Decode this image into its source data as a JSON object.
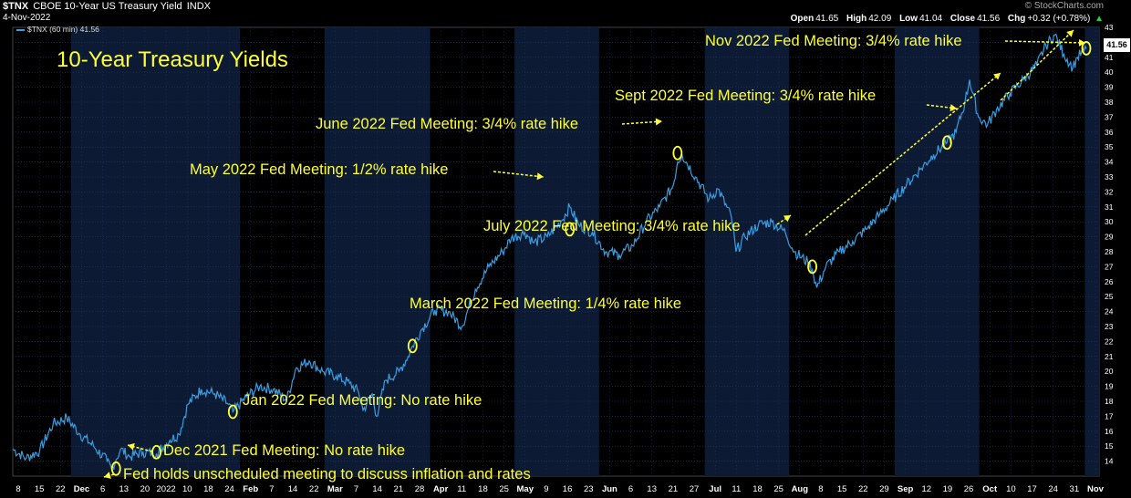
{
  "header": {
    "symbol": "$TNX",
    "description": "CBOE 10-Year US Treasury Yield",
    "exchange": "INDX",
    "date": "4-Nov-2022",
    "brand": "© StockCharts.com",
    "open_label": "Open",
    "open": "41.65",
    "high_label": "High",
    "high": "42.09",
    "low_label": "Low",
    "low": "41.04",
    "close_label": "Close",
    "close": "41.56",
    "chg_label": "Chg",
    "chg": "+0.32 (+0.78%)",
    "chg_arrow": "▲"
  },
  "legend": {
    "series_label": "$TNX (60 min) 41.56"
  },
  "colors": {
    "line": "#3a9ee0",
    "annotation": "#ffff33",
    "band": "#0c1a33",
    "grid": "#233a5e"
  },
  "chart_data": {
    "type": "line",
    "title": "10-Year Treasury Yields",
    "xlabel": "",
    "ylabel": "",
    "ylim": [
      13,
      43
    ],
    "yticks": [
      14,
      15,
      16,
      17,
      18,
      19,
      20,
      21,
      22,
      23,
      24,
      25,
      26,
      27,
      28,
      29,
      30,
      31,
      32,
      33,
      34,
      35,
      36,
      37,
      38,
      39,
      40,
      41,
      42,
      43
    ],
    "last_value": "41.56",
    "xticks": [
      "8",
      "15",
      "22",
      "Dec",
      "6",
      "13",
      "20",
      "2022",
      "10",
      "18",
      "24",
      "Feb",
      "7",
      "14",
      "22",
      "Mar",
      "7",
      "14",
      "21",
      "28",
      "Apr",
      "11",
      "18",
      "25",
      "May",
      "9",
      "16",
      "23",
      "Jun",
      "6",
      "13",
      "21",
      "27",
      "Jul",
      "11",
      "18",
      "25",
      "Aug",
      "8",
      "15",
      "22",
      "29",
      "Sep",
      "12",
      "19",
      "26",
      "Oct",
      "10",
      "17",
      "24",
      "31",
      "Nov"
    ],
    "series": [
      {
        "name": "$TNX (60 min)",
        "points": [
          [
            0,
            14.8
          ],
          [
            3,
            14.2
          ],
          [
            6,
            14.7
          ],
          [
            9,
            16.5
          ],
          [
            12,
            16.9
          ],
          [
            15,
            15.8
          ],
          [
            18,
            15.0
          ],
          [
            21,
            14.0
          ],
          [
            22,
            13.5
          ],
          [
            23,
            14.1
          ],
          [
            24,
            14.8
          ],
          [
            26,
            14.3
          ],
          [
            29,
            14.6
          ],
          [
            32,
            14.5
          ],
          [
            35,
            15.4
          ],
          [
            37,
            15.8
          ],
          [
            39,
            17.8
          ],
          [
            42,
            18.8
          ],
          [
            45,
            18.5
          ],
          [
            48,
            17.8
          ],
          [
            49,
            17.3
          ],
          [
            52,
            18.3
          ],
          [
            55,
            19.0
          ],
          [
            58,
            18.8
          ],
          [
            61,
            18.1
          ],
          [
            63,
            20.2
          ],
          [
            66,
            20.7
          ],
          [
            69,
            20.0
          ],
          [
            72,
            19.7
          ],
          [
            75,
            19.2
          ],
          [
            77,
            18.6
          ],
          [
            78,
            17.4
          ],
          [
            80,
            18.5
          ],
          [
            81,
            17.0
          ],
          [
            83,
            19.4
          ],
          [
            86,
            20.0
          ],
          [
            88,
            21.0
          ],
          [
            89,
            21.7
          ],
          [
            91,
            22.8
          ],
          [
            94,
            24.1
          ],
          [
            97,
            24.0
          ],
          [
            100,
            23.0
          ],
          [
            103,
            25.5
          ],
          [
            106,
            27.0
          ],
          [
            109,
            28.0
          ],
          [
            111,
            28.9
          ],
          [
            114,
            29.3
          ],
          [
            116,
            28.6
          ],
          [
            119,
            29.0
          ],
          [
            122,
            30.0
          ],
          [
            124,
            31.0
          ],
          [
            126,
            29.8
          ],
          [
            129,
            29.3
          ],
          [
            132,
            28.0
          ],
          [
            135,
            27.8
          ],
          [
            138,
            28.4
          ],
          [
            141,
            30.0
          ],
          [
            144,
            31.0
          ],
          [
            147,
            32.4
          ],
          [
            148,
            34.0
          ],
          [
            149,
            34.5
          ],
          [
            152,
            33.0
          ],
          [
            155,
            31.5
          ],
          [
            157,
            32.2
          ],
          [
            160,
            30.3
          ],
          [
            161,
            28.0
          ],
          [
            163,
            29.0
          ],
          [
            166,
            29.8
          ],
          [
            169,
            30.0
          ],
          [
            172,
            29.3
          ],
          [
            174,
            28.0
          ],
          [
            177,
            27.3
          ],
          [
            178,
            26.8
          ],
          [
            179,
            25.6
          ],
          [
            181,
            27.0
          ],
          [
            184,
            28.0
          ],
          [
            187,
            28.7
          ],
          [
            190,
            29.5
          ],
          [
            193,
            30.5
          ],
          [
            196,
            31.5
          ],
          [
            199,
            32.5
          ],
          [
            202,
            33.5
          ],
          [
            205,
            34.5
          ],
          [
            208,
            35.3
          ],
          [
            210,
            36.0
          ],
          [
            212,
            38.0
          ],
          [
            213,
            39.5
          ],
          [
            215,
            37.0
          ],
          [
            217,
            36.5
          ],
          [
            219,
            37.5
          ],
          [
            222,
            38.6
          ],
          [
            225,
            39.5
          ],
          [
            228,
            40.5
          ],
          [
            230,
            41.8
          ],
          [
            232,
            42.5
          ],
          [
            234,
            41.2
          ],
          [
            236,
            40.3
          ],
          [
            237,
            41.0
          ],
          [
            239,
            41.56
          ]
        ]
      }
    ]
  },
  "annotations": [
    {
      "id": "nov-2022",
      "text": "Nov 2022 Fed Meeting: 3/4% rate hike"
    },
    {
      "id": "sept-2022",
      "text": "Sept 2022 Fed Meeting: 3/4% rate hike"
    },
    {
      "id": "june-2022",
      "text": "June 2022 Fed Meeting: 3/4% rate hike"
    },
    {
      "id": "may-2022",
      "text": "May 2022 Fed Meeting: 1/2% rate hike"
    },
    {
      "id": "july-2022",
      "text": "July 2022 Fed Meeting: 3/4% rate hike"
    },
    {
      "id": "march-2022",
      "text": "March 2022 Fed Meeting: 1/4% rate hike"
    },
    {
      "id": "jan-2022",
      "text": "Jan 2022 Fed Meeting: No rate hike"
    },
    {
      "id": "dec-2021",
      "text": "Dec 2021 Fed Meeting: No rate hike"
    },
    {
      "id": "unscheduled",
      "text": "Fed holds unscheduled meeting to discuss inflation and rates"
    }
  ]
}
